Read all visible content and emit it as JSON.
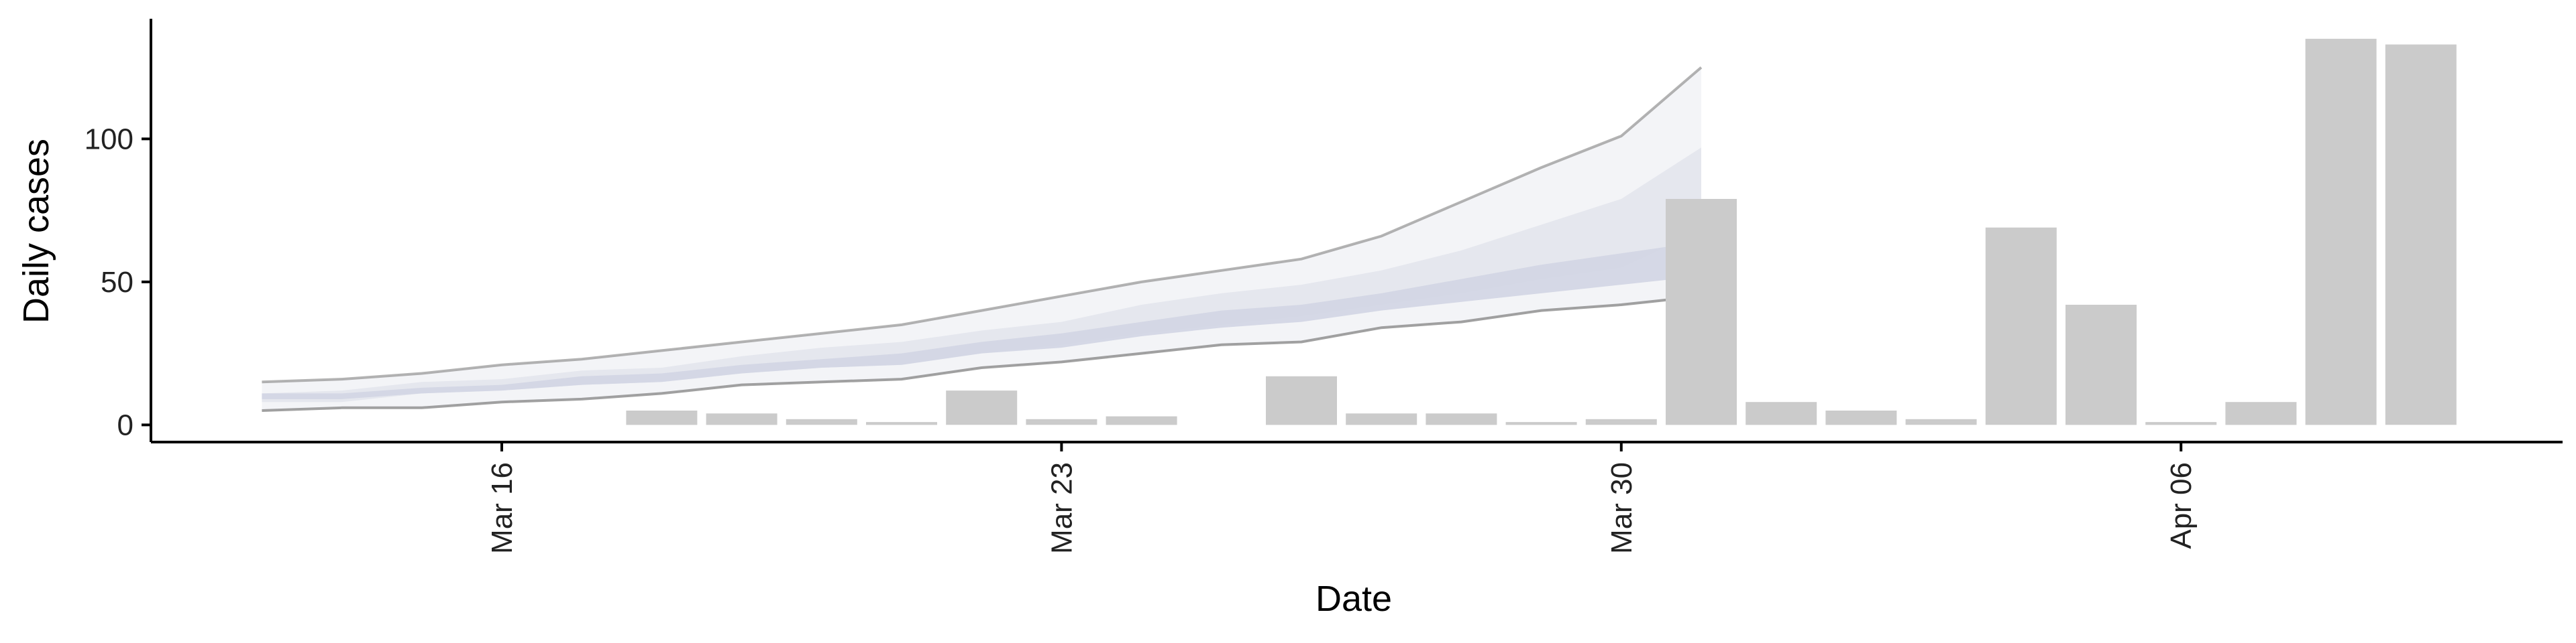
{
  "chart_data": {
    "type": "bar",
    "xlabel": "Date",
    "ylabel": "Daily cases",
    "ylim": [
      -6,
      142
    ],
    "y_ticks": [
      0,
      50,
      100
    ],
    "x_ticks": [
      {
        "date": "2020-03-16",
        "label": "Mar 16"
      },
      {
        "date": "2020-03-23",
        "label": "Mar 23"
      },
      {
        "date": "2020-03-30",
        "label": "Mar 30"
      },
      {
        "date": "2020-04-06",
        "label": "Apr 06"
      }
    ],
    "bars": [
      {
        "date": "2020-03-18",
        "value": 5
      },
      {
        "date": "2020-03-19",
        "value": 4
      },
      {
        "date": "2020-03-20",
        "value": 2
      },
      {
        "date": "2020-03-21",
        "value": 1
      },
      {
        "date": "2020-03-22",
        "value": 12
      },
      {
        "date": "2020-03-23",
        "value": 2
      },
      {
        "date": "2020-03-24",
        "value": 3
      },
      {
        "date": "2020-03-26",
        "value": 17
      },
      {
        "date": "2020-03-27",
        "value": 4
      },
      {
        "date": "2020-03-28",
        "value": 4
      },
      {
        "date": "2020-03-29",
        "value": 1
      },
      {
        "date": "2020-03-30",
        "value": 2
      },
      {
        "date": "2020-03-31",
        "value": 79
      },
      {
        "date": "2020-04-01",
        "value": 8
      },
      {
        "date": "2020-04-02",
        "value": 5
      },
      {
        "date": "2020-04-03",
        "value": 2
      },
      {
        "date": "2020-04-04",
        "value": 69
      },
      {
        "date": "2020-04-05",
        "value": 42
      },
      {
        "date": "2020-04-06",
        "value": 1
      },
      {
        "date": "2020-04-07",
        "value": 8
      },
      {
        "date": "2020-04-08",
        "value": 135
      },
      {
        "date": "2020-04-09",
        "value": 133
      }
    ],
    "forecast_band": {
      "dates": [
        "2020-03-13",
        "2020-03-14",
        "2020-03-15",
        "2020-03-16",
        "2020-03-17",
        "2020-03-18",
        "2020-03-19",
        "2020-03-20",
        "2020-03-21",
        "2020-03-22",
        "2020-03-23",
        "2020-03-24",
        "2020-03-25",
        "2020-03-26",
        "2020-03-27",
        "2020-03-28",
        "2020-03-29",
        "2020-03-30",
        "2020-03-31"
      ],
      "outer_upper": [
        15,
        16,
        18,
        21,
        23,
        26,
        29,
        32,
        35,
        40,
        45,
        50,
        54,
        58,
        66,
        78,
        90,
        101,
        125
      ],
      "outer_lower": [
        5,
        6,
        6,
        8,
        9,
        11,
        14,
        15,
        16,
        20,
        22,
        25,
        28,
        29,
        34,
        36,
        40,
        42,
        45
      ],
      "inner_upper": [
        11,
        12,
        15,
        16,
        19,
        20,
        24,
        27,
        29,
        33,
        36,
        42,
        46,
        49,
        54,
        61,
        70,
        79,
        97
      ],
      "inner_lower": [
        8,
        8,
        11,
        12,
        14,
        15,
        18,
        20,
        21,
        25,
        28,
        32,
        35,
        38,
        42,
        46,
        51,
        55,
        68
      ],
      "core_upper": [
        11,
        11,
        13,
        14,
        17,
        18,
        21,
        23,
        25,
        29,
        32,
        36,
        40,
        42,
        46,
        51,
        56,
        60,
        64
      ],
      "core_lower": [
        9,
        9,
        11,
        12,
        14,
        15,
        18,
        20,
        21,
        25,
        27,
        31,
        34,
        36,
        40,
        43,
        46,
        49,
        52
      ]
    },
    "grid": false,
    "legend": "none",
    "colors": {
      "bar": "#cbcbcb",
      "outer_band": "#f3f4f7",
      "inner_band": "#e2e4ec",
      "core_band": "#d1d5e3",
      "band_edge": "#8a8a8a",
      "axis": "#000000"
    }
  }
}
